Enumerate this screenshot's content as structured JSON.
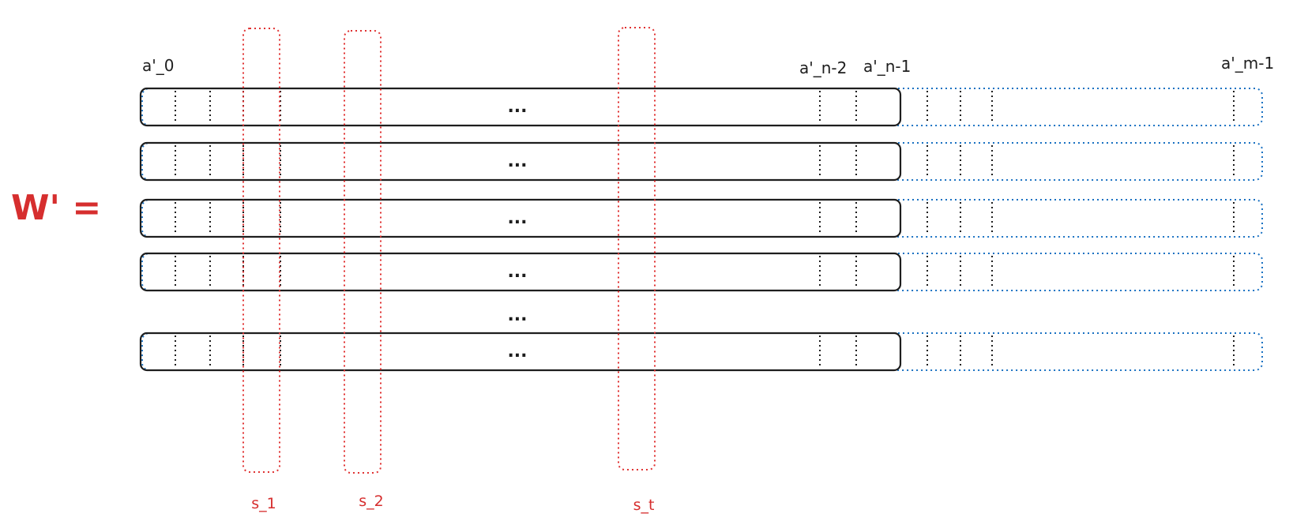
{
  "matrix_label": "W' =",
  "top_labels": {
    "first": "a'_0",
    "second_last": "a'_n-2",
    "last": "a'_n-1",
    "extended_last": "a'_m-1"
  },
  "row_ellipsis": "...",
  "between_rows_ellipsis": "...",
  "selections": [
    "s_1",
    "s_2",
    "s_t"
  ],
  "colors": {
    "row_outline": "#1e1e1e",
    "extended_outline": "#1971c2",
    "selection_outline": "#e03131",
    "annotation": "#d62e2e"
  }
}
